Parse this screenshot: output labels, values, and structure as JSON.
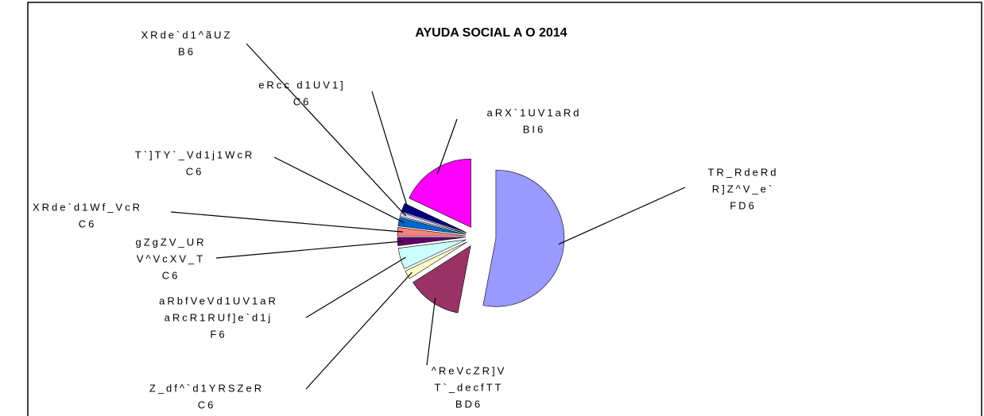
{
  "chart_data": {
    "type": "pie",
    "title": "AYUDA SOCIAL A O 2014",
    "categories": [
      [
        "TR_RdeRd",
        "R]Z^V_e`"
      ],
      [
        "^ReVcZR]V",
        "T`_decfTT"
      ],
      [
        "Z_df^`d1YRSZeR"
      ],
      [
        "aRbfVeVd1UV1aR",
        "aRcR1RUf]e`d1j"
      ],
      [
        "gZgZV_UR",
        "V^VcXV_T"
      ],
      [
        "XRde`d1Wf_VcR"
      ],
      [
        "T`]TY`_Vd1j1WcR"
      ],
      [
        "XRde`d1^ãUZ"
      ],
      [
        "eRcc d1UV1]"
      ],
      [
        "aRX`1UV1aRd"
      ]
    ],
    "values": [
      53,
      13,
      2,
      5,
      2,
      2,
      2,
      1,
      2,
      18
    ],
    "value_labels": [
      "FD6",
      "BD6",
      "C6",
      "F6",
      "C6",
      "C6",
      "C6",
      "B6",
      "C6",
      "BI6"
    ],
    "colors": [
      "#9999ff",
      "#993366",
      "#ffffcc",
      "#ccffff",
      "#660066",
      "#ff8080",
      "#0066cc",
      "#ccccff",
      "#000080",
      "#ff00ff"
    ]
  }
}
